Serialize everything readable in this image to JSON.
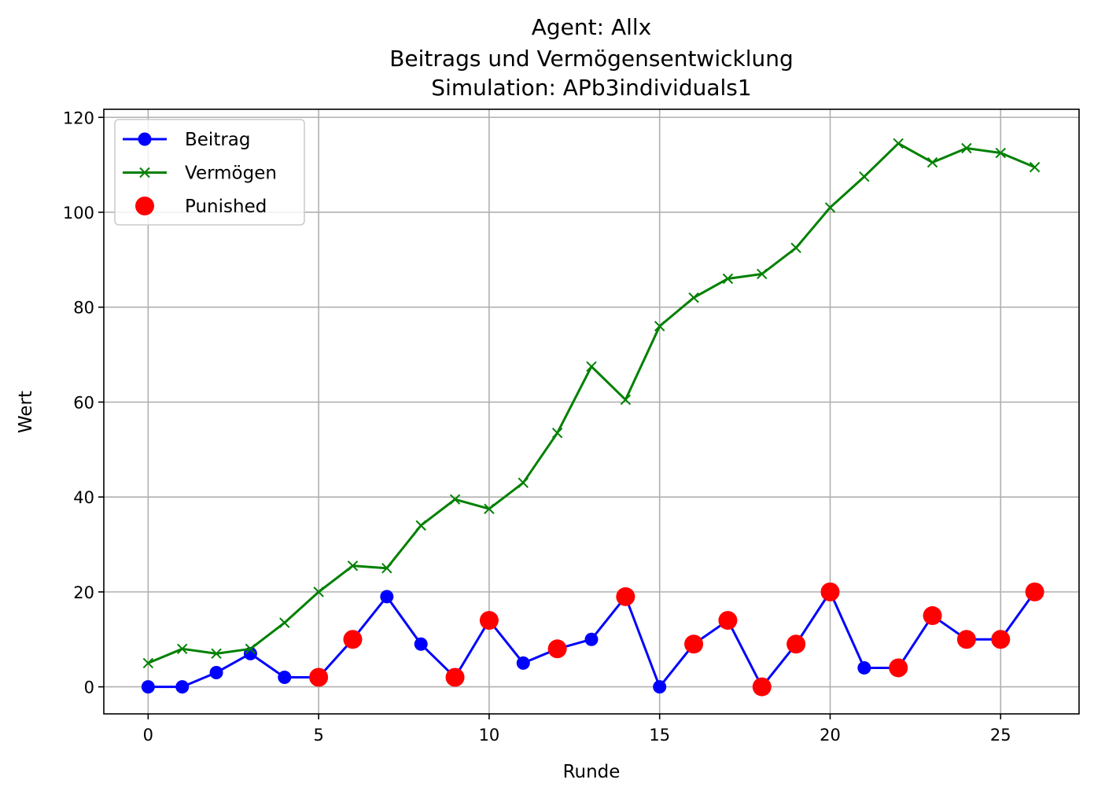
{
  "chart_data": {
    "type": "line",
    "title_lines": [
      "Agent: Allx",
      "Beitrags und Vermögensentwicklung",
      "Simulation: APb3individuals1"
    ],
    "xlabel": "Runde",
    "ylabel": "Wert",
    "xlim": [
      -1.3,
      27.3
    ],
    "ylim": [
      -5.7,
      121.7
    ],
    "xticks": [
      0,
      5,
      10,
      15,
      20,
      25
    ],
    "yticks": [
      0,
      20,
      40,
      60,
      80,
      100,
      120
    ],
    "grid": true,
    "legend_position": "upper-left",
    "x": [
      0,
      1,
      2,
      3,
      4,
      5,
      6,
      7,
      8,
      9,
      10,
      11,
      12,
      13,
      14,
      15,
      16,
      17,
      18,
      19,
      20,
      21,
      22,
      23,
      24,
      25,
      26
    ],
    "series": [
      {
        "name": "Beitrag",
        "kind": "line-circle",
        "color": "#0000ff",
        "values": [
          0,
          0,
          3,
          7,
          2,
          2,
          10,
          19,
          9,
          2,
          14,
          5,
          8,
          10,
          19,
          0,
          9,
          14,
          0,
          9,
          20,
          4,
          4,
          15,
          10,
          10,
          20
        ]
      },
      {
        "name": "Vermögen",
        "kind": "line-x",
        "color": "#008000",
        "values": [
          5,
          8,
          7,
          8,
          13.5,
          20,
          25.5,
          25,
          34,
          39.5,
          37.5,
          43,
          53.5,
          67.5,
          60.5,
          76,
          82,
          86,
          87,
          92.5,
          101,
          107.5,
          114.5,
          110.5,
          113.5,
          112.5,
          109.5
        ]
      },
      {
        "name": "Punished",
        "kind": "scatter",
        "color": "#ff0000",
        "x": [
          5,
          6,
          9,
          10,
          12,
          14,
          16,
          17,
          18,
          19,
          20,
          22,
          23,
          24,
          25,
          26
        ],
        "values": [
          2,
          10,
          2,
          14,
          8,
          19,
          9,
          14,
          0,
          9,
          20,
          4,
          15,
          10,
          10,
          20
        ]
      }
    ]
  }
}
